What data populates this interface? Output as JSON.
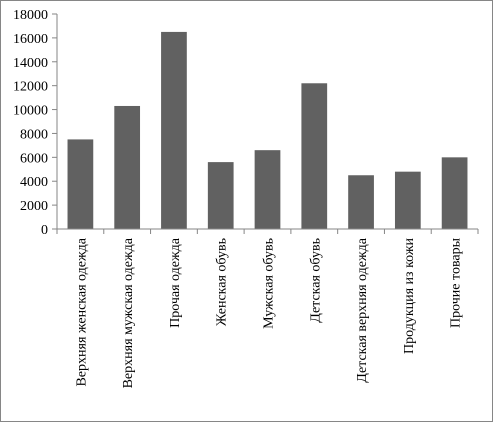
{
  "chart_data": {
    "type": "bar",
    "categories": [
      "Верхняя женская одежда",
      "Верхняя мужская одежда",
      "Прочая одежда",
      "Женская обувь",
      "Мужская обувь",
      "Детская обувь",
      "Детская верхняя одежда",
      "Продукция из кожи",
      "Прочие товары"
    ],
    "values": [
      7500,
      10300,
      16500,
      5600,
      6600,
      12200,
      4500,
      4800,
      6000
    ],
    "yticks": [
      "0",
      "2000",
      "4000",
      "6000",
      "8000",
      "10000",
      "12000",
      "14000",
      "16000",
      "18000"
    ],
    "ylim": [
      0,
      18000
    ],
    "grid": false,
    "legend": "none",
    "bar_color": "#616161"
  }
}
